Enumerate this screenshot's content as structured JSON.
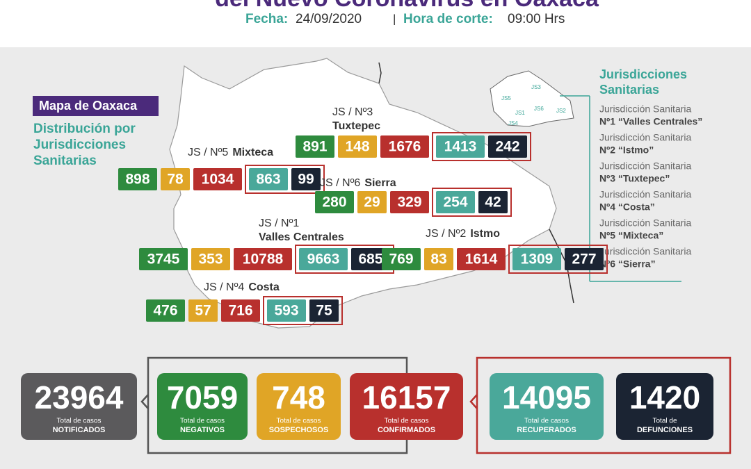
{
  "header": {
    "title": "del Nuevo Coronavirus en Oaxaca",
    "date_label": "Fecha:",
    "date": "24/09/2020",
    "separator": "|",
    "time_label": "Hora de corte:",
    "time": "09:00 Hrs"
  },
  "map_tag": "Mapa de Oaxaca",
  "map_subtitle": [
    "Distribución por",
    "Jurisdicciones",
    "Sanitarias"
  ],
  "jurisdictions": [
    {
      "label": "JS / Nº3",
      "name": "Tuxtepec",
      "values": [
        891,
        148,
        1676,
        1413,
        242
      ]
    },
    {
      "label": "JS / Nº5",
      "name": "Mixteca",
      "values": [
        898,
        78,
        1034,
        863,
        99
      ]
    },
    {
      "label": "JS / Nº6",
      "name": "Sierra",
      "values": [
        280,
        29,
        329,
        254,
        42
      ]
    },
    {
      "label": "JS / Nº1",
      "name": "Valles Centrales",
      "values": [
        3745,
        353,
        10788,
        9663,
        685
      ]
    },
    {
      "label": "JS / Nº2",
      "name": "Istmo",
      "values": [
        769,
        83,
        1614,
        1309,
        277
      ]
    },
    {
      "label": "JS / Nº4",
      "name": "Costa",
      "values": [
        476,
        57,
        716,
        593,
        75
      ]
    }
  ],
  "mini_map_labels": [
    "JS3",
    "JS5",
    "JS6",
    "JS1",
    "JS2",
    "JS4"
  ],
  "legend": {
    "title": [
      "Jurisdicciones",
      "Sanitarias"
    ],
    "items": [
      [
        "Jurisdicción Sanitaria",
        "Nº1 “Valles Centrales”"
      ],
      [
        "Jurisdicción Sanitaria",
        "Nº2 “Istmo”"
      ],
      [
        "Jurisdicción Sanitaria",
        "Nº3 “Tuxtepec”"
      ],
      [
        "Jurisdicción Sanitaria",
        "Nº4 “Costa”"
      ],
      [
        "Jurisdicción Sanitaria",
        "Nº5 “Mixteca”"
      ],
      [
        "Jurisdicción Sanitaria",
        "Nº6 “Sierra”"
      ]
    ]
  },
  "totals": [
    {
      "value": 23964,
      "caption": "Total de casos",
      "label": "NOTIFICADOS"
    },
    {
      "value": 7059,
      "caption": "Total de casos",
      "label": "NEGATIVOS"
    },
    {
      "value": 748,
      "caption": "Total de casos",
      "label": "SOSPECHOSOS"
    },
    {
      "value": 16157,
      "caption": "Total de casos",
      "label": "CONFIRMADOS"
    },
    {
      "value": 14095,
      "caption": "Total de casos",
      "label": "RECUPERADOS"
    },
    {
      "value": 1420,
      "caption": "Total de",
      "label": "DEFUNCIONES"
    }
  ]
}
